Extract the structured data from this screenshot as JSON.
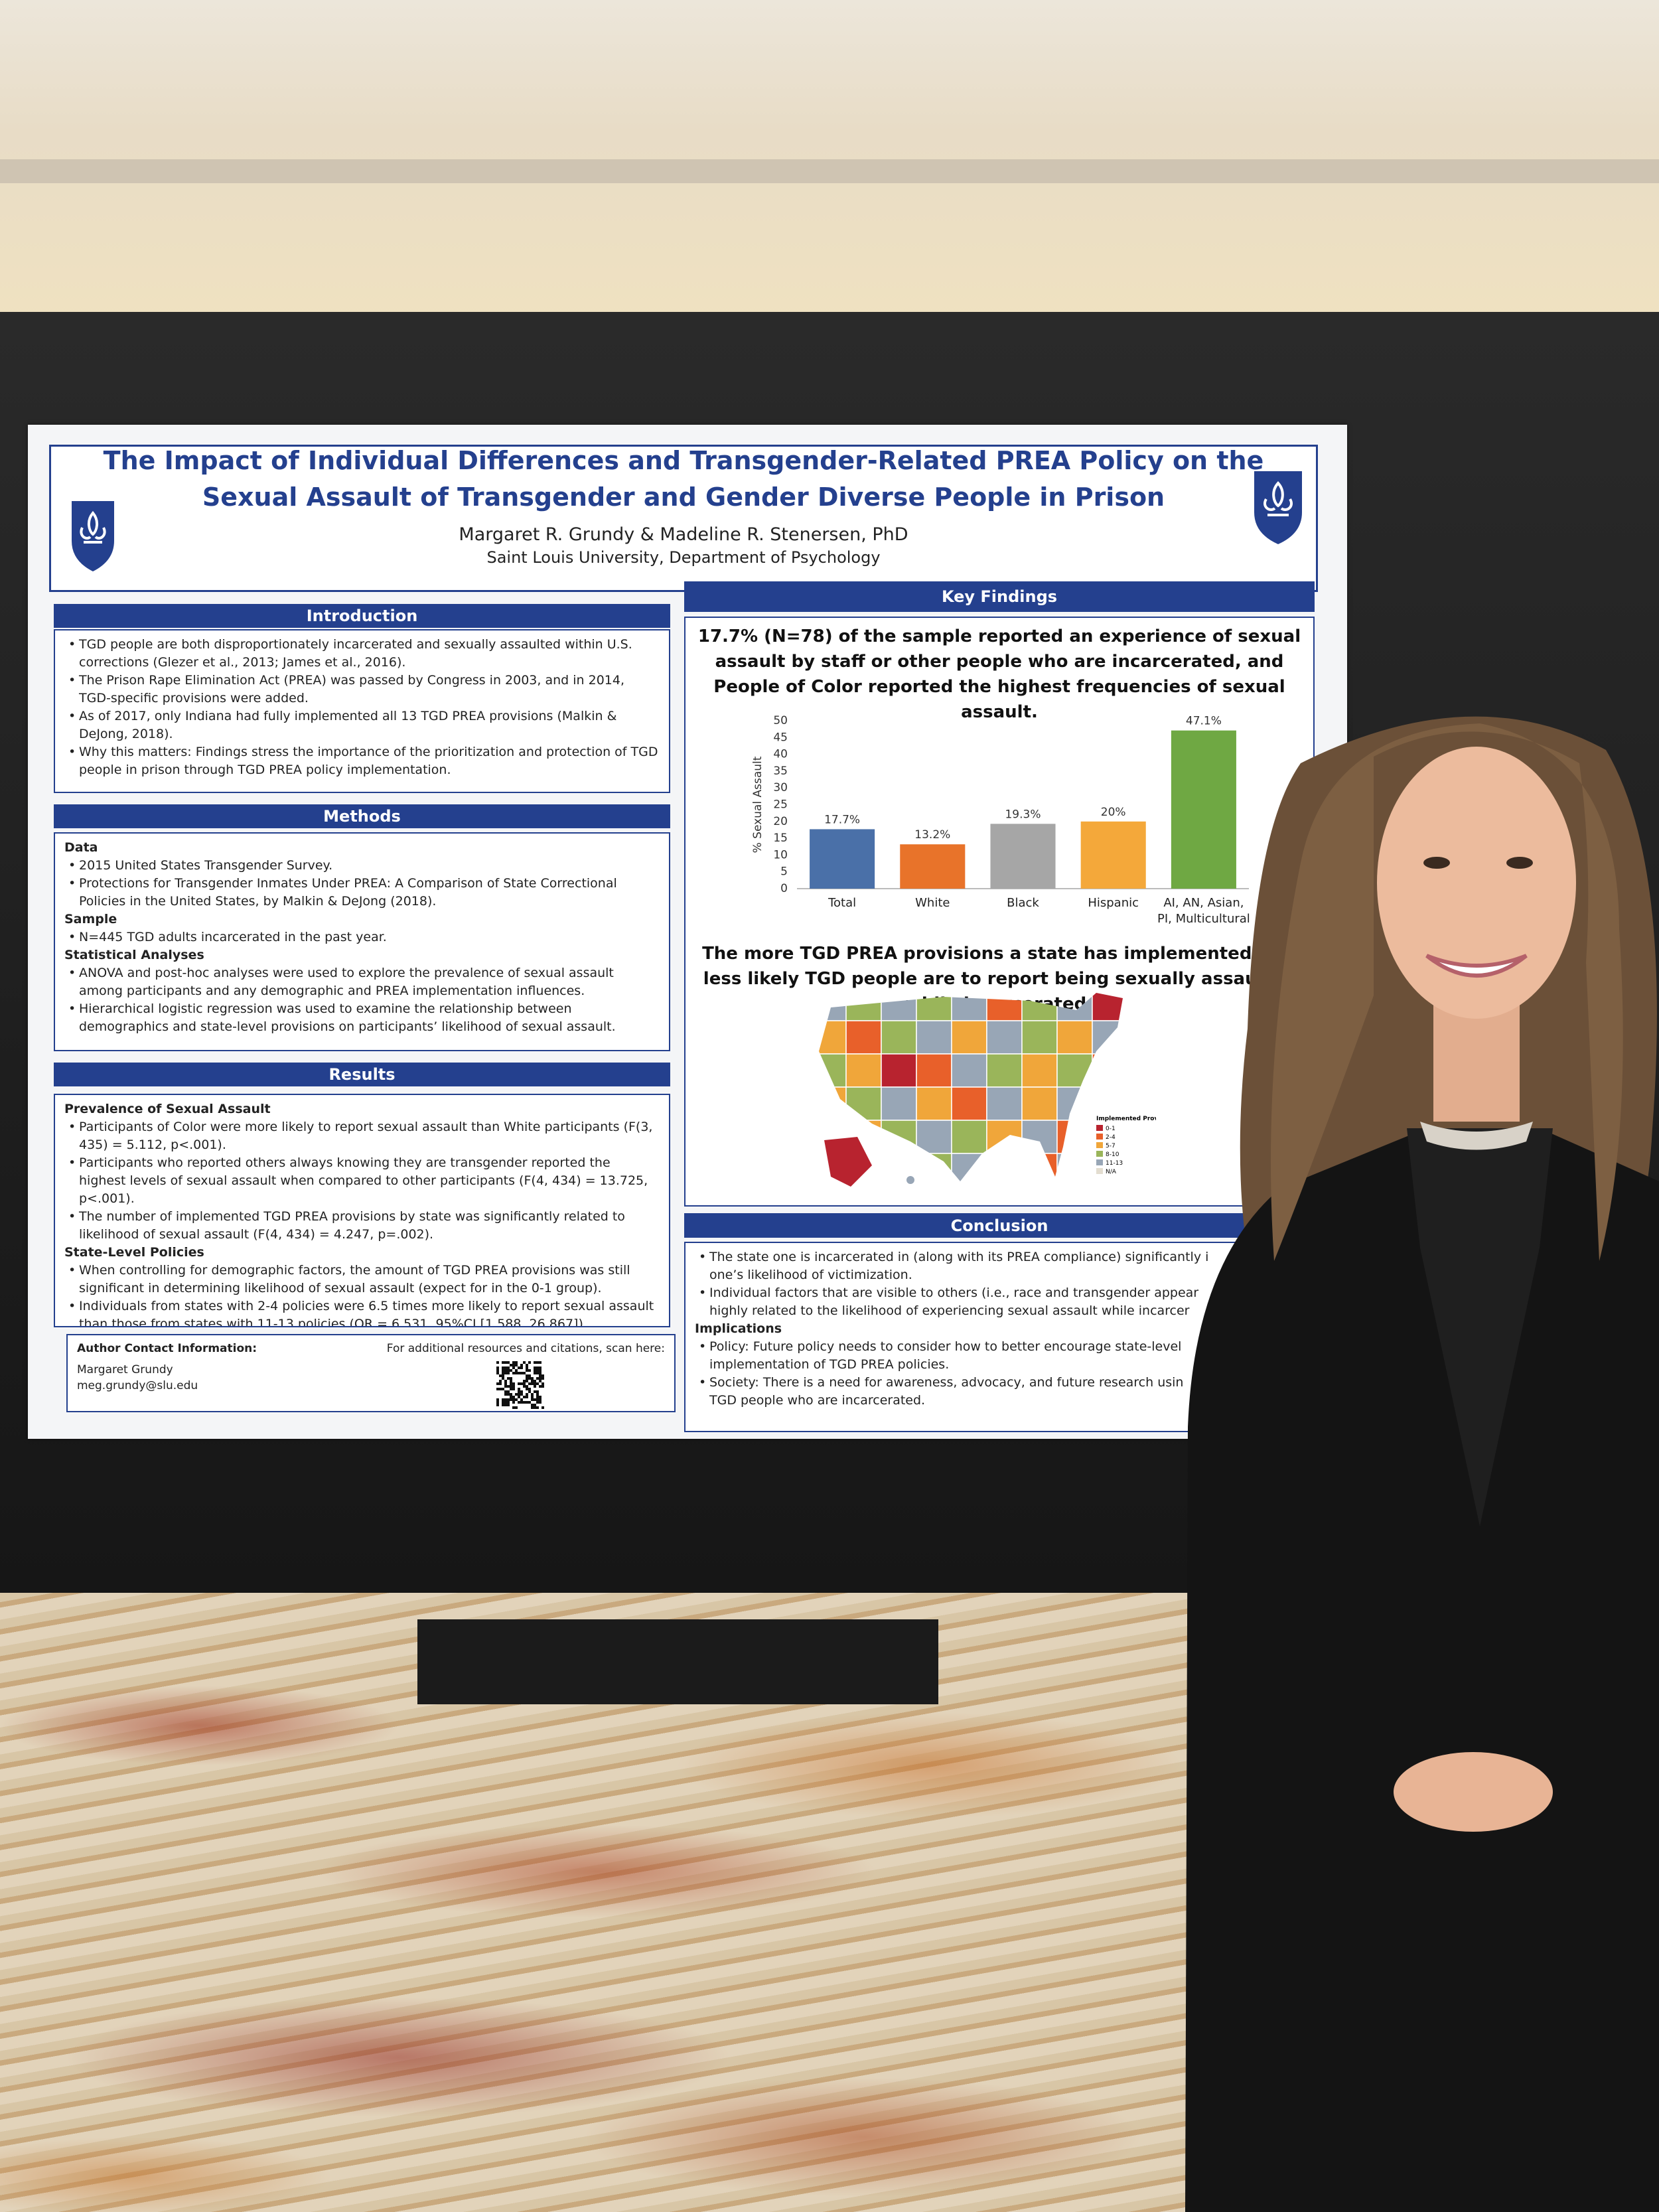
{
  "poster": {
    "title": [
      "The Impact of Individual Differences and Transgender-Related PREA Policy on the",
      "Sexual Assault of Transgender and Gender Diverse People in Prison"
    ],
    "authors": "Margaret R. Grundy & Madeline R. Stenersen, PhD",
    "affiliation": "Saint Louis University, Department of Psychology",
    "sections": [
      {
        "heading": "Introduction",
        "blocks": [
          {
            "bullets": [
              "TGD people are both disproportionately incarcerated and sexually assaulted within U.S. corrections (Glezer et al., 2013; James et al., 2016).",
              "The Prison Rape Elimination Act (PREA) was passed by Congress in 2003, and in 2014, TGD-specific provisions were added.",
              "As of 2017, only Indiana had fully implemented all 13 TGD PREA provisions (Malkin & DeJong, 2018).",
              "Why this matters: Findings stress the importance of the prioritization and protection of TGD people in prison through TGD PREA policy implementation."
            ]
          }
        ]
      },
      {
        "heading": "Methods",
        "blocks": [
          {
            "subheading": "Data",
            "bullets": [
              "2015 United States Transgender Survey.",
              "Protections for Transgender Inmates Under PREA: A Comparison of State Correctional Policies in the United States, by Malkin & DeJong (2018)."
            ]
          },
          {
            "subheading": "Sample",
            "bullets": [
              "N=445 TGD adults incarcerated in the past year."
            ]
          },
          {
            "subheading": "Statistical Analyses",
            "bullets": [
              "ANOVA and post-hoc analyses were used to explore the prevalence of sexual assault among participants and any demographic and PREA implementation influences.",
              "Hierarchical logistic regression was used to examine the relationship between demographics and state-level provisions on participants’ likelihood of sexual assault."
            ]
          }
        ]
      },
      {
        "heading": "Results",
        "blocks": [
          {
            "subheading": "Prevalence of Sexual Assault",
            "bullets": [
              "Participants of Color were more likely to report sexual assault than White participants (F(3, 435) = 5.112, p<.001).",
              "Participants who reported others always knowing they are transgender reported the highest levels of sexual assault when compared to other participants (F(4, 434) = 13.725, p<.001).",
              "The number of implemented TGD PREA provisions by state was significantly related to likelihood of sexual assault (F(4, 434) = 4.247, p=.002)."
            ]
          },
          {
            "subheading": "State-Level Policies",
            "bullets": [
              "When controlling for demographic factors, the amount of TGD PREA provisions was still significant in determining likelihood of sexual assault (expect for in the 0-1 group).",
              "Individuals from states with 2-4 policies were 6.5 times more likely to report sexual assault than those from states with 11-13 policies (OR = 6.531, 95%CI [1.588, 26.867])."
            ]
          }
        ]
      }
    ],
    "contact": {
      "heading": "Author Contact Information:",
      "name": "Margaret Grundy",
      "email": "meg.grundy@slu.edu",
      "scan": "For additional resources and citations, scan here:"
    },
    "key_findings": {
      "heading": "Key Findings",
      "headline": "17.7% (N=78) of the sample reported an experience of sexual assault by staff or other people who are incarcerated, and People of Color reported the highest frequencies of sexual assault.",
      "map_headline": "The more TGD PREA provisions a state has implemented, the less likely TGD people are to report being sexually assaulted while incarcerated.",
      "map_legend": {
        "title": "Implemented Provisions",
        "items": [
          {
            "label": "0-1",
            "color": "#b8232f"
          },
          {
            "label": "2-4",
            "color": "#e8602a"
          },
          {
            "label": "5-7",
            "color": "#f0a63a"
          },
          {
            "label": "8-10",
            "color": "#9ab55a"
          },
          {
            "label": "11-13",
            "color": "#98a6b6"
          },
          {
            "label": "N/A",
            "color": "#e3ddd0"
          }
        ]
      }
    },
    "conclusion": {
      "heading": "Conclusion",
      "blocks": [
        {
          "bullets": [
            [
              "The state one is incarcerated in (along with its PREA compliance) significantly i",
              "one’s likelihood of victimization."
            ],
            [
              "Individual factors that are visible to others (i.e., race and transgender appear",
              "highly related to the likelihood of experiencing sexual assault while incarcer"
            ]
          ]
        },
        {
          "subheading": "Implications",
          "bullets": [
            [
              "Policy: Future policy needs to consider how to better encourage state-level",
              "implementation of TGD PREA policies."
            ],
            [
              "Society: There is a need for awareness, advocacy, and future research usin",
              "TGD people who are incarcerated."
            ]
          ]
        }
      ]
    }
  },
  "chart_data": {
    "type": "bar",
    "ylabel": "% Sexual Assault",
    "categories": [
      "Total",
      "White",
      "Black",
      "Hispanic",
      "AI, AN, Asian, PI, Multicultural"
    ],
    "values": [
      17.7,
      13.2,
      19.3,
      20,
      47.1
    ],
    "value_labels": [
      "17.7%",
      "13.2%",
      "19.3%",
      "20%",
      "47.1%"
    ],
    "colors": [
      "#4a70a8",
      "#e8732a",
      "#a6a6a6",
      "#f4a83a",
      "#6fa843"
    ],
    "ylim": [
      0,
      50
    ],
    "yticks": [
      0,
      5,
      10,
      15,
      20,
      25,
      30,
      35,
      40,
      45,
      50
    ],
    "grid": false
  }
}
